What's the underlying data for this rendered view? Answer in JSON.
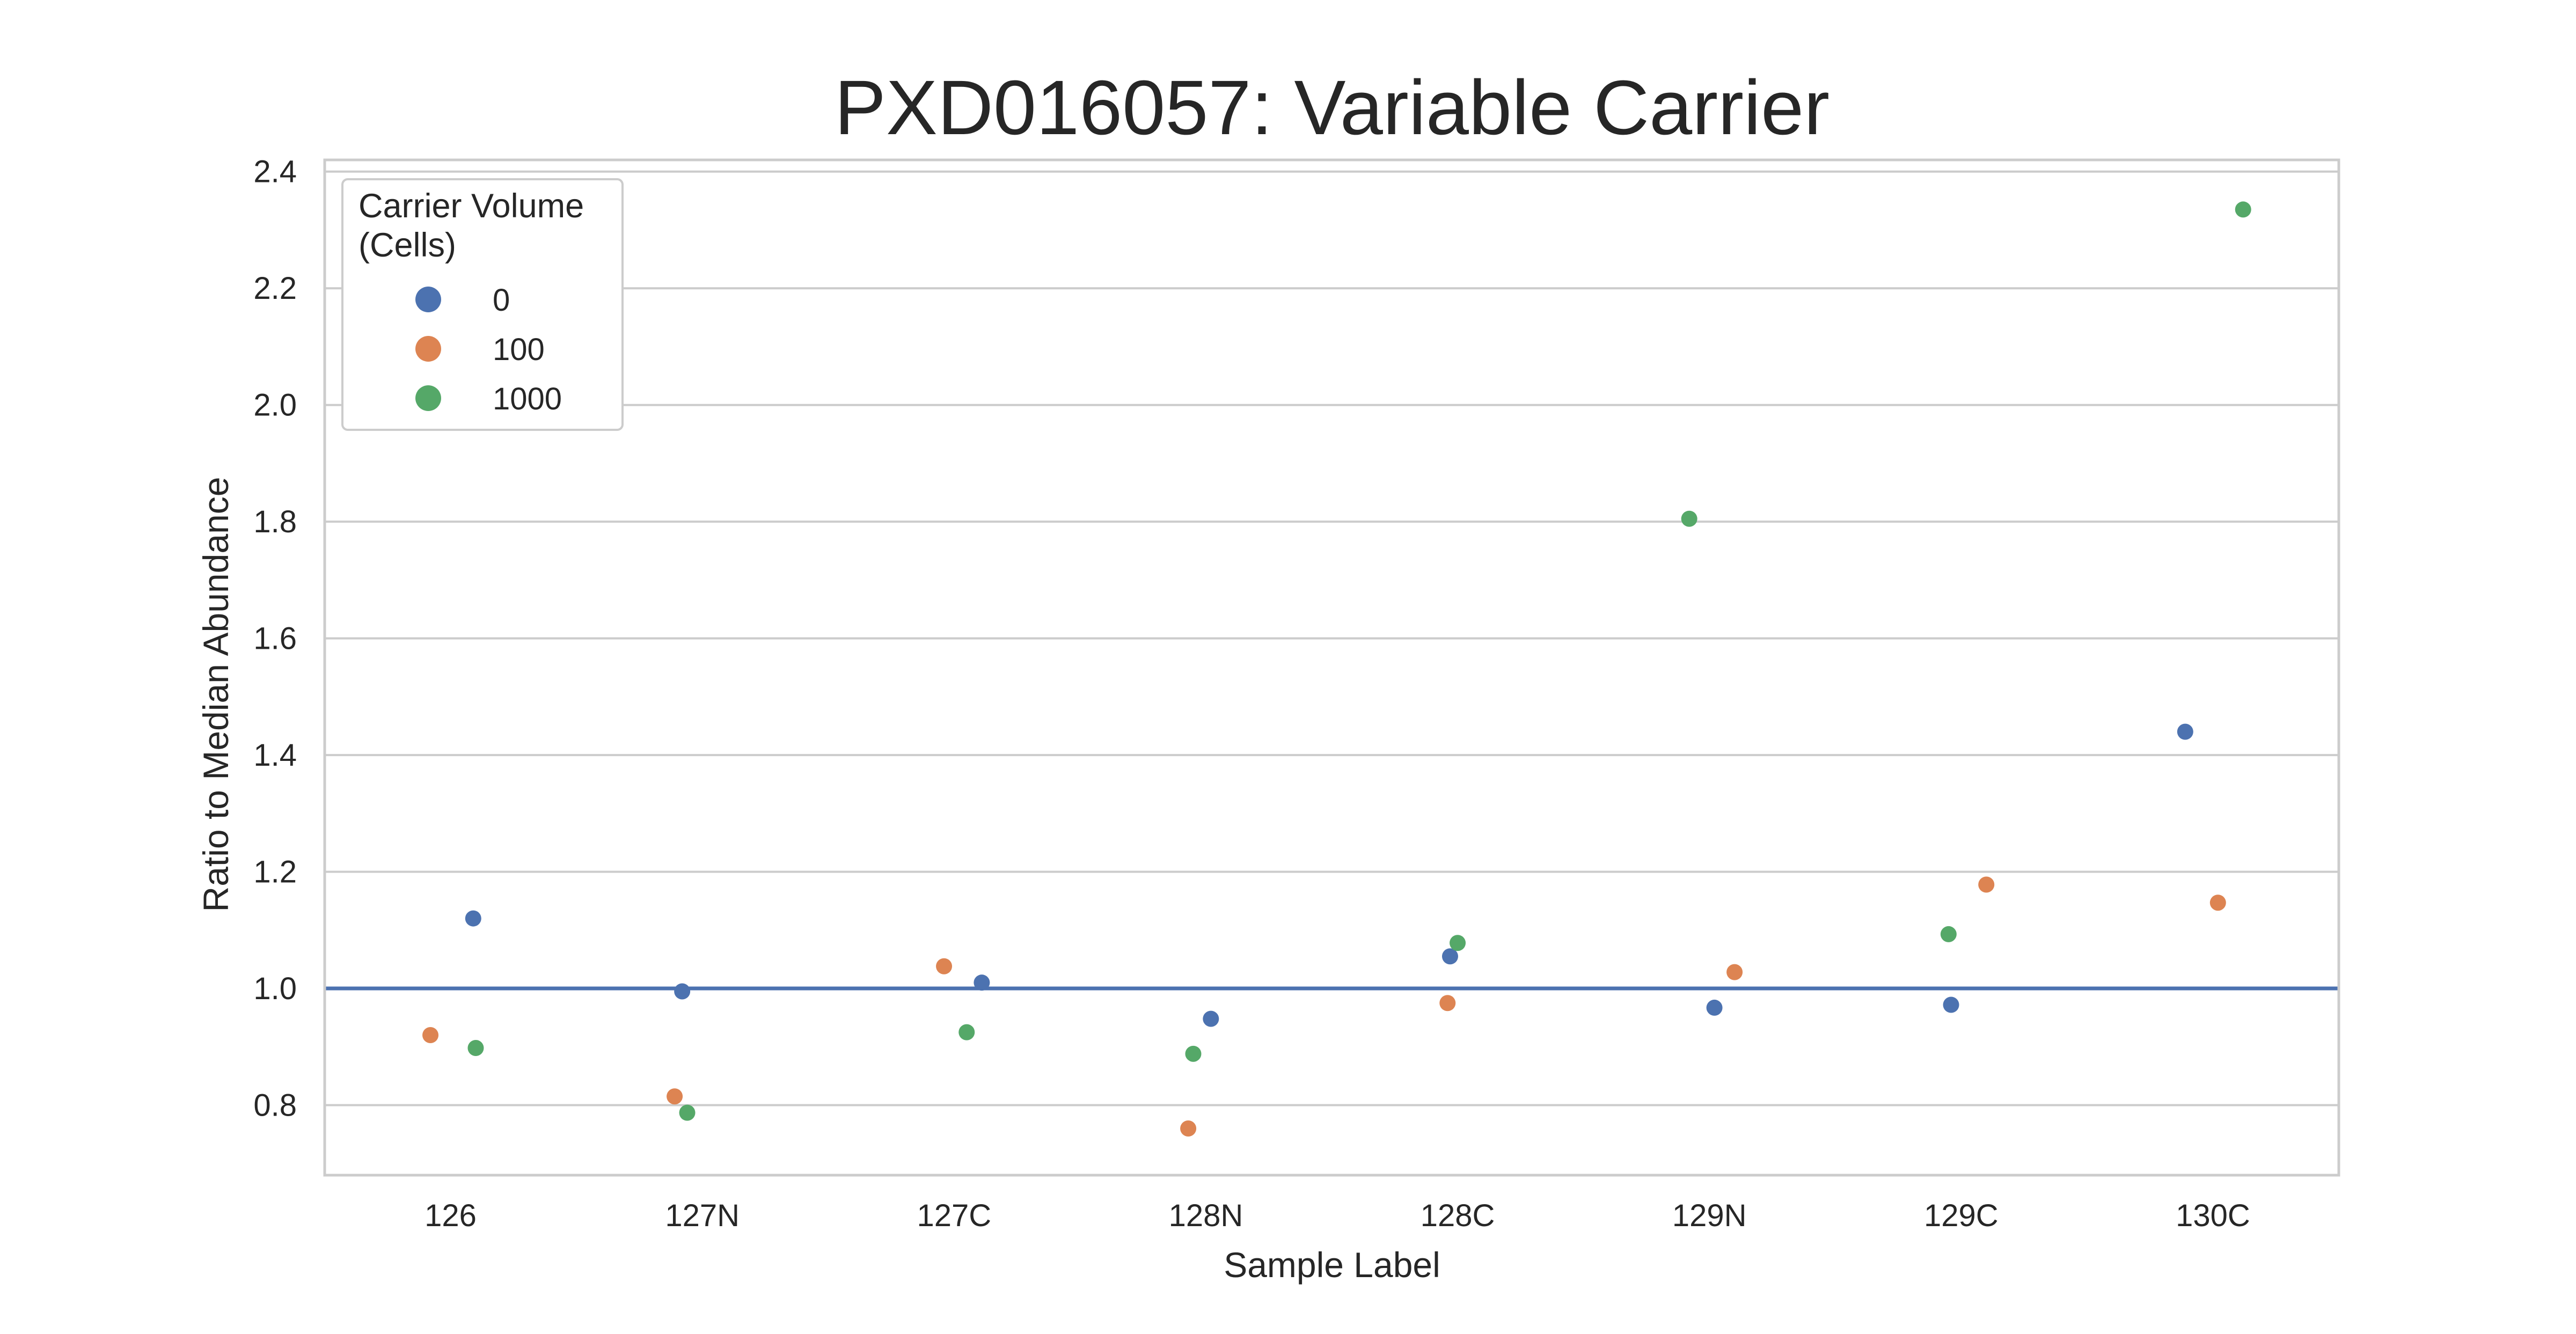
{
  "chart_data": {
    "type": "scatter",
    "title": "PXD016057: Variable Carrier",
    "xlabel": "Sample Label",
    "ylabel": "Ratio to Median Abundance",
    "categories": [
      "126",
      "127N",
      "127C",
      "128N",
      "128C",
      "129N",
      "129C",
      "130C"
    ],
    "ylim": [
      0.68,
      2.42
    ],
    "yticks": [
      0.8,
      1.0,
      1.2,
      1.4,
      1.6,
      1.8,
      2.0,
      2.2,
      2.4
    ],
    "ytick_labels": [
      "0.8",
      "1.0",
      "1.2",
      "1.4",
      "1.6",
      "1.8",
      "2.0",
      "2.2",
      "2.4"
    ],
    "grid": true,
    "reference_line": {
      "y": 1.0,
      "color": "#4c72b0"
    },
    "legend": {
      "title_line1": "Carrier Volume",
      "title_line2": "(Cells)",
      "placement": "top-left"
    },
    "series": [
      {
        "name": "0",
        "color": "#4c72b0",
        "values": [
          1.12,
          0.995,
          1.01,
          0.948,
          1.055,
          0.967,
          0.972,
          1.44
        ]
      },
      {
        "name": "100",
        "color": "#dd8452",
        "values": [
          0.92,
          0.815,
          1.038,
          0.76,
          0.975,
          1.028,
          1.178,
          1.147
        ]
      },
      {
        "name": "1000",
        "color": "#55a868",
        "values": [
          0.898,
          0.787,
          0.925,
          0.888,
          1.078,
          1.805,
          1.093,
          2.335
        ]
      }
    ],
    "styles": {
      "grid_color": "#cccccc",
      "frame_color": "#cccccc",
      "text_color": "#262626"
    }
  }
}
